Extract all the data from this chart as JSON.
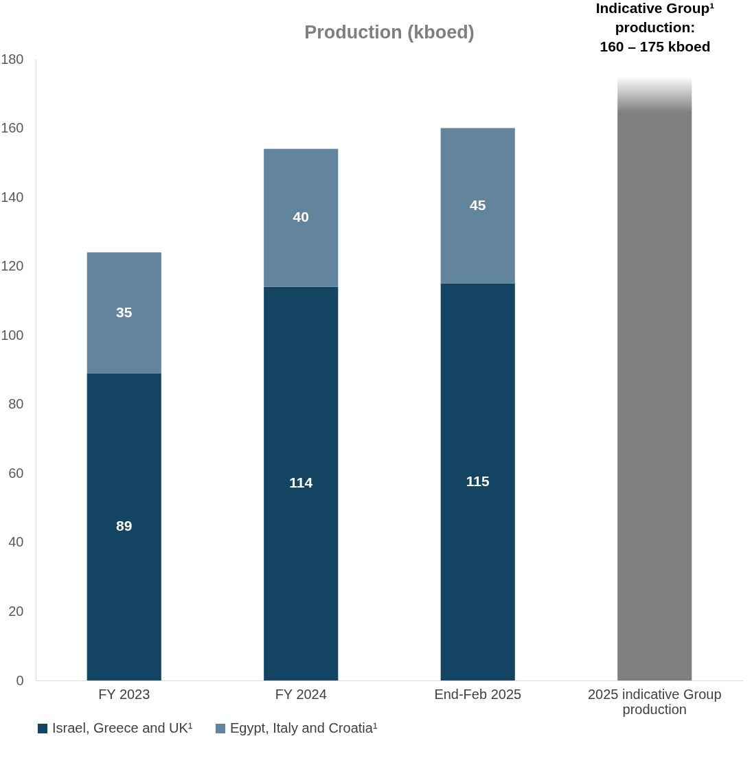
{
  "chart_data": {
    "type": "bar",
    "title": "Production (kboed)",
    "stacked": true,
    "categories": [
      "FY 2023",
      "FY 2024",
      "End-Feb 2025",
      "2025 indicative Group production"
    ],
    "series": [
      {
        "name": "Israel, Greece and UK¹",
        "color": "#134563",
        "values": [
          89,
          114,
          115,
          null
        ],
        "value_labels": [
          "89",
          "114",
          "115",
          null
        ]
      },
      {
        "name": "Egypt, Italy and Croatia¹",
        "color": "#62849c",
        "values": [
          35,
          40,
          45,
          null
        ],
        "value_labels": [
          "35",
          "40",
          "45",
          null
        ]
      },
      {
        "color": "#7f7f7f",
        "values": [
          null,
          null,
          null,
          175
        ]
      }
    ],
    "ylim": [
      0,
      180
    ],
    "yticks": [
      0,
      20,
      40,
      60,
      80,
      100,
      120,
      140,
      160,
      180
    ],
    "grid": false,
    "legend": "bottom",
    "annotations": [
      "Indicative Group¹ production: 160 – 175 kboed"
    ]
  }
}
